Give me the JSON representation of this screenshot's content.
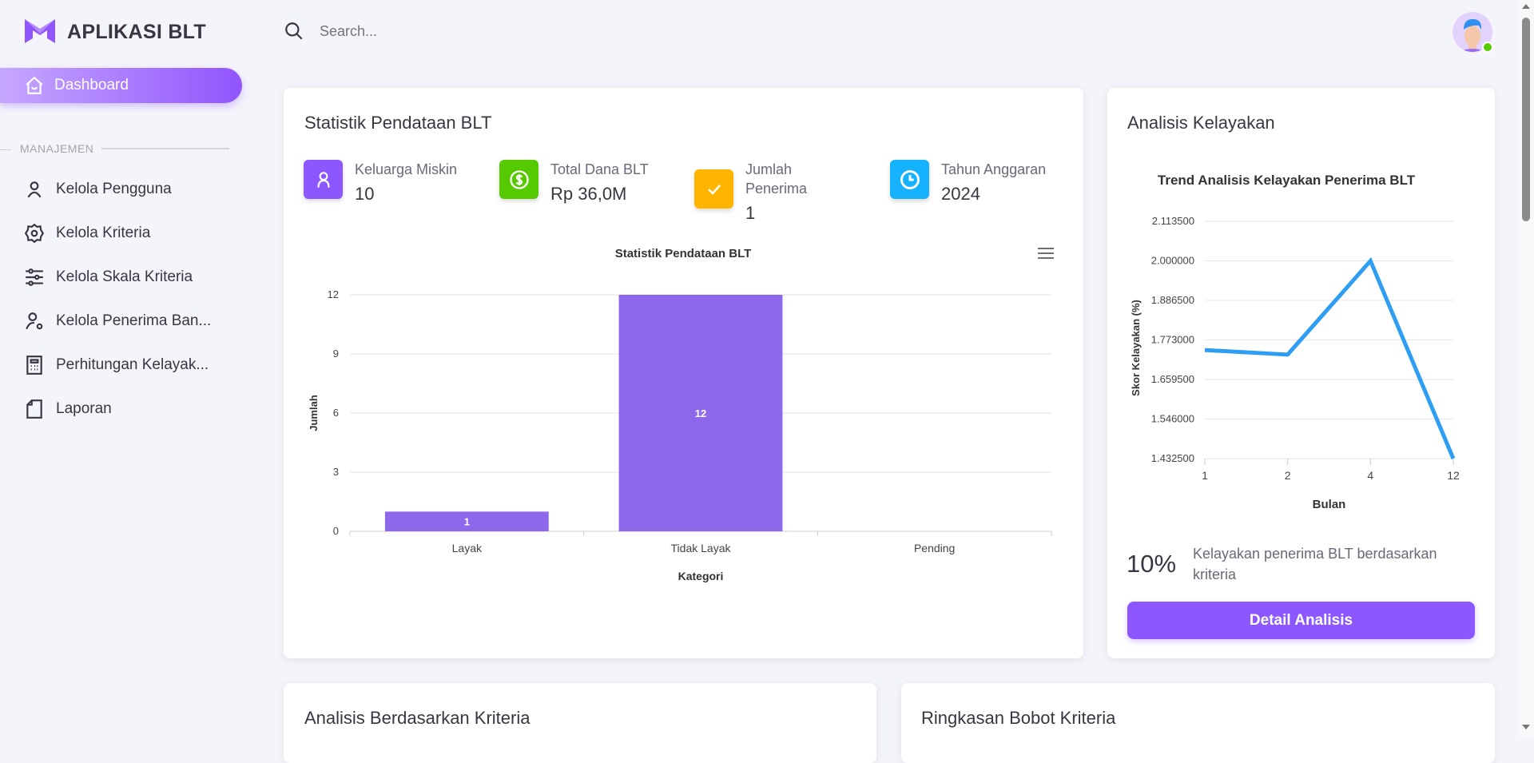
{
  "brand": {
    "name": "APLIKASI BLT",
    "color": "#8c57ff"
  },
  "sidebar": {
    "active": {
      "label": "Dashboard",
      "icon": "home-icon"
    },
    "section": "MANAJEMEN",
    "items": [
      {
        "label": "Kelola Pengguna",
        "icon": "user-icon"
      },
      {
        "label": "Kelola Kriteria",
        "icon": "gear-icon"
      },
      {
        "label": "Kelola Skala Kriteria",
        "icon": "sliders-icon"
      },
      {
        "label": "Kelola Penerima Ban...",
        "icon": "user-gear-icon"
      },
      {
        "label": "Perhitungan Kelayak...",
        "icon": "calculator-icon"
      },
      {
        "label": "Laporan",
        "icon": "document-icon"
      }
    ]
  },
  "header": {
    "search_placeholder": "Search...",
    "avatar_status_color": "#56ca00"
  },
  "statistik": {
    "title": "Statistik Pendataan BLT",
    "stats": [
      {
        "label": "Keluarga Miskin",
        "value": "10",
        "color": "#8c57ff",
        "icon": "user-icon"
      },
      {
        "label": "Total Dana BLT",
        "value": "Rp 36,0M",
        "color": "#56ca00",
        "icon": "dollar-icon"
      },
      {
        "label": "Jumlah Penerima",
        "value": "1",
        "color": "#ffb400",
        "icon": "check-icon"
      },
      {
        "label": "Tahun Anggaran",
        "value": "2024",
        "color": "#16b1ff",
        "icon": "clock-icon"
      }
    ]
  },
  "analisis": {
    "title": "Analisis Kelayakan",
    "percent": "10%",
    "description": "Kelayakan penerima BLT berdasarkan kriteria",
    "button": "Detail Analisis"
  },
  "bottom": {
    "left_title": "Analisis Berdasarkan Kriteria",
    "right_title": "Ringkasan Bobot Kriteria"
  },
  "chart_data": [
    {
      "type": "bar",
      "title": "Statistik Pendataan BLT",
      "xlabel": "Kategori",
      "ylabel": "Jumlah",
      "categories": [
        "Layak",
        "Tidak Layak",
        "Pending"
      ],
      "values": [
        1,
        12,
        0
      ],
      "ylim": [
        0,
        12
      ],
      "yticks": [
        "0",
        "3",
        "6",
        "9",
        "12"
      ],
      "color": "#8e68ea",
      "grid": true,
      "data_labels": true
    },
    {
      "type": "line",
      "title": "Trend Analisis Kelayakan Penerima BLT",
      "xlabel": "Bulan",
      "ylabel": "Skor Kelayakan (%)",
      "categories": [
        "1",
        "2",
        "4",
        "12"
      ],
      "values": [
        1.744,
        1.731,
        2.0,
        1.4325
      ],
      "ylim": [
        1.4325,
        2.1135
      ],
      "yticks": [
        "1.432500",
        "1.546000",
        "1.659500",
        "1.773000",
        "1.886500",
        "2.000000",
        "2.113500"
      ],
      "color": "#2e9ef4",
      "grid": true
    }
  ]
}
